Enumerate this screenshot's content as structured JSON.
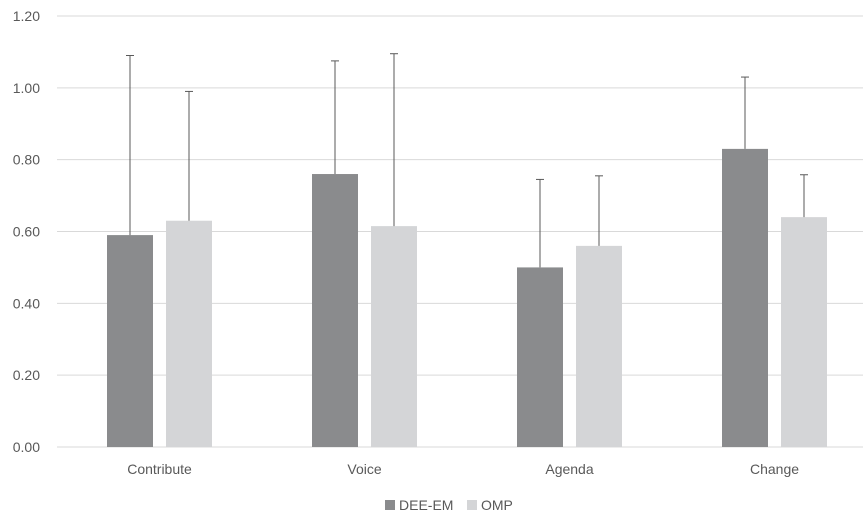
{
  "chart_data": {
    "type": "bar",
    "title": "",
    "xlabel": "",
    "ylabel": "",
    "categories": [
      "Contribute",
      "Voice",
      "Agenda",
      "Change"
    ],
    "series": [
      {
        "name": "DEE-EM",
        "color": "#8a8b8d",
        "values": [
          0.59,
          0.76,
          0.5,
          0.83
        ],
        "error_upper": [
          1.09,
          1.075,
          0.745,
          1.03
        ]
      },
      {
        "name": "OMP",
        "color": "#d4d5d7",
        "values": [
          0.63,
          0.615,
          0.56,
          0.64
        ],
        "error_upper": [
          0.99,
          1.095,
          0.755,
          0.758
        ]
      }
    ],
    "ylim": [
      0,
      1.2
    ],
    "yticks": [
      "0.00",
      "0.20",
      "0.40",
      "0.60",
      "0.80",
      "1.00",
      "1.20"
    ],
    "grid": true,
    "legend_position": "bottom"
  }
}
